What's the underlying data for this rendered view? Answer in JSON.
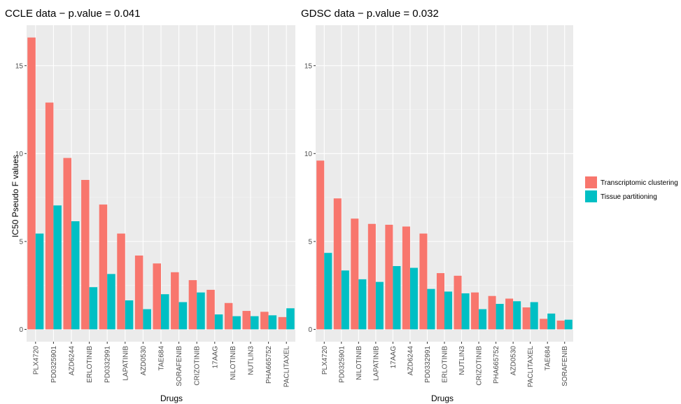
{
  "chart_data": [
    {
      "type": "bar",
      "title": "CCLE data − p.value = 0.041",
      "xlabel": "Drugs",
      "ylabel": "IC50 Pseudo F values",
      "ylim": [
        -0.7,
        17.3
      ],
      "yticks": [
        0,
        5,
        10,
        15
      ],
      "grid": true,
      "categories": [
        "PLX4720",
        "PD0325901",
        "AZD6244",
        "ERLOTINIB",
        "PD0332991",
        "LAPATINIB",
        "AZD0530",
        "TAE684",
        "SORAFENIB",
        "CRIZOTINIB",
        "17AAG",
        "NILOTINIB",
        "NUTLIN3",
        "PHA665752",
        "PACLITAXEL"
      ],
      "series": [
        {
          "name": "Transcriptomic clustering",
          "values": [
            16.6,
            12.9,
            9.75,
            8.5,
            7.1,
            5.45,
            4.2,
            3.75,
            3.25,
            2.8,
            2.25,
            1.5,
            1.05,
            1.0,
            0.7
          ]
        },
        {
          "name": "Tissue partitioning",
          "values": [
            5.45,
            7.05,
            6.15,
            2.4,
            3.15,
            1.65,
            1.15,
            2.0,
            1.55,
            2.1,
            0.85,
            0.75,
            0.75,
            0.8,
            1.2
          ]
        }
      ]
    },
    {
      "type": "bar",
      "title": "GDSC data − p.value = 0.032",
      "xlabel": "Drugs",
      "ylabel": "",
      "ylim": [
        -0.7,
        17.3
      ],
      "yticks": [
        0,
        5,
        10,
        15
      ],
      "grid": true,
      "categories": [
        "PLX4720",
        "PD0325901",
        "NILOTINIB",
        "LAPATINIB",
        "17AAG",
        "AZD6244",
        "PD0332991",
        "ERLOTINIB",
        "NUTLIN3",
        "CRIZOTINIB",
        "PHA665752",
        "AZD0530",
        "PACLITAXEL",
        "TAE684",
        "SORAFENIB"
      ],
      "series": [
        {
          "name": "Transcriptomic clustering",
          "values": [
            9.6,
            7.45,
            6.3,
            6.0,
            5.95,
            5.85,
            5.45,
            3.2,
            3.05,
            2.1,
            1.9,
            1.75,
            1.25,
            0.6,
            0.5
          ]
        },
        {
          "name": "Tissue partitioning",
          "values": [
            4.35,
            3.35,
            2.85,
            2.7,
            3.6,
            3.5,
            2.3,
            2.15,
            2.05,
            1.15,
            1.45,
            1.6,
            1.55,
            0.9,
            0.55
          ]
        }
      ]
    }
  ],
  "legend": {
    "placement": "right",
    "items": [
      {
        "label": "Transcriptomic clustering",
        "color": "#F8766D"
      },
      {
        "label": "Tissue partitioning",
        "color": "#00BFC4"
      }
    ]
  },
  "colors": {
    "panel_bg": "#EBEBEB",
    "grid_major": "#FFFFFF",
    "grid_minor": "#F5F5F5",
    "series1": "#F8766D",
    "series2": "#00BFC4",
    "tick_text": "#4D4D4D"
  }
}
